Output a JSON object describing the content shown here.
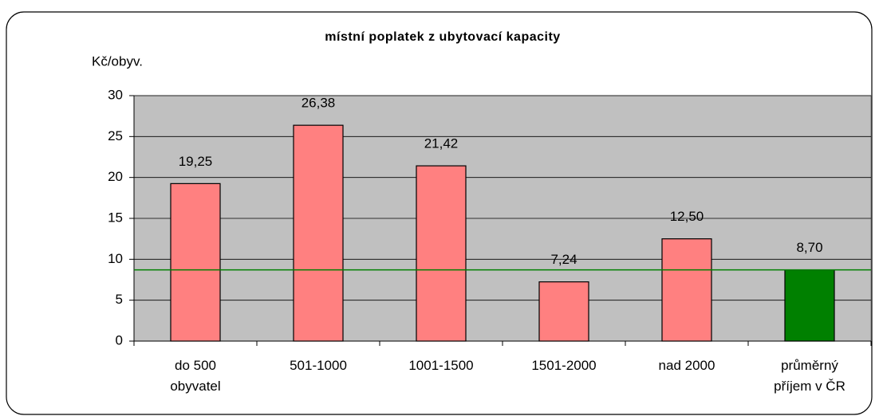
{
  "chart_data": {
    "type": "bar",
    "title": "místní poplatek z ubytovací kapacity",
    "y_label": "Kč/obyv.",
    "categories": [
      "do 500 obyvatel",
      "501-1000",
      "1001-1500",
      "1501-2000",
      "nad 2000",
      "průměrný příjem v ČR"
    ],
    "values": [
      19.25,
      26.38,
      21.42,
      7.24,
      12.5,
      8.7
    ],
    "value_labels": [
      "19,25",
      "26,38",
      "21,42",
      "7,24",
      "12,50",
      "8,70"
    ],
    "colors": [
      "#ff8080",
      "#ff8080",
      "#ff8080",
      "#ff8080",
      "#ff8080",
      "#008000"
    ],
    "reference_line": {
      "value": 8.7,
      "color": "#008000"
    },
    "ylim": [
      0,
      30
    ],
    "yticks": [
      0,
      5,
      10,
      15,
      20,
      25,
      30
    ],
    "grid": true,
    "plot_background": "#c0c0c0"
  }
}
